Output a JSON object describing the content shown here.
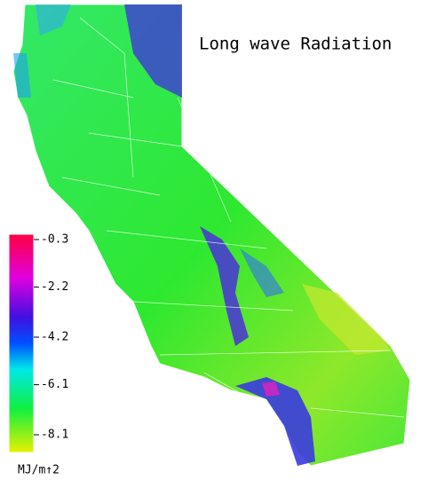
{
  "map": {
    "title": "Long wave Radiation",
    "colorbar": {
      "lim": [
        -8.1,
        -0.3
      ],
      "ticks": [
        -0.3,
        -2.2,
        -4.2,
        -6.1,
        -8.1
      ],
      "unit": "MJ/m↑2"
    }
  }
}
